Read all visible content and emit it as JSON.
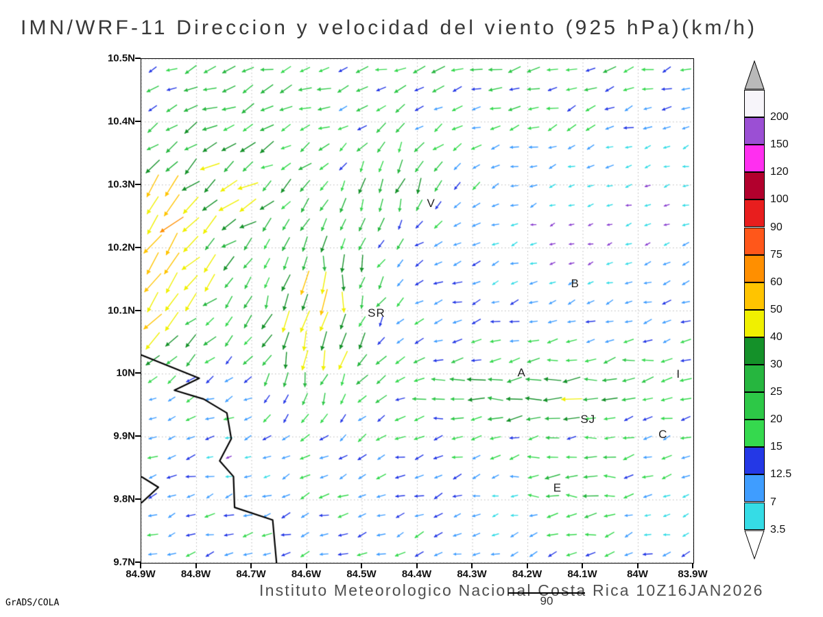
{
  "title": "IMN/WRF-11 Direccion y velocidad del viento (925 hPa)(km/h)",
  "footer": {
    "institute": "Instituto Meteorologico Nacional Costa Rica 10Z16JAN2026",
    "stray": "90",
    "credit": "GrADS/COLA"
  },
  "axes": {
    "lat": [
      {
        "label": "10.5N",
        "value": 10.5
      },
      {
        "label": "10.4N",
        "value": 10.4
      },
      {
        "label": "10.3N",
        "value": 10.3
      },
      {
        "label": "10.2N",
        "value": 10.2
      },
      {
        "label": "10.1N",
        "value": 10.1
      },
      {
        "label": "10N",
        "value": 10.0
      },
      {
        "label": "9.9N",
        "value": 9.9
      },
      {
        "label": "9.8N",
        "value": 9.8
      },
      {
        "label": "9.7N",
        "value": 9.7
      }
    ],
    "lon": [
      {
        "label": "84.9W",
        "value": -84.9
      },
      {
        "label": "84.8W",
        "value": -84.8
      },
      {
        "label": "84.7W",
        "value": -84.7
      },
      {
        "label": "84.6W",
        "value": -84.6
      },
      {
        "label": "84.5W",
        "value": -84.5
      },
      {
        "label": "84.4W",
        "value": -84.4
      },
      {
        "label": "84.3W",
        "value": -84.3
      },
      {
        "label": "84.2W",
        "value": -84.2
      },
      {
        "label": "84.1W",
        "value": -84.1
      },
      {
        "label": "84W",
        "value": -84.0
      },
      {
        "label": "83.9W",
        "value": -83.9
      }
    ]
  },
  "colorbar": {
    "labels": [
      "3.5",
      "7",
      "12.5",
      "15",
      "20",
      "25",
      "30",
      "40",
      "50",
      "60",
      "75",
      "90",
      "100",
      "120",
      "150",
      "200"
    ],
    "segment_colors": [
      "#35dce6",
      "#3f9dff",
      "#2438e6",
      "#35d94e",
      "#2dc847",
      "#26b63f",
      "#149129",
      "#f0f000",
      "#ffc400",
      "#ff8f00",
      "#ff571a",
      "#e81e1e",
      "#b2002d",
      "#ff2ff0",
      "#9b4fd4",
      "#f7f5fa"
    ],
    "over_color": "#b9b9b9",
    "under_color": "#ffffff"
  },
  "stations": [
    {
      "label": "V",
      "lon": -84.375,
      "lat": 10.27
    },
    {
      "label": "B",
      "lon": -84.114,
      "lat": 10.143
    },
    {
      "label": "SR",
      "lon": -84.474,
      "lat": 10.096
    },
    {
      "label": "A",
      "lon": -84.211,
      "lat": 10.001
    },
    {
      "label": "SJ",
      "lon": -84.091,
      "lat": 9.928
    },
    {
      "label": "C",
      "lon": -83.955,
      "lat": 9.903
    },
    {
      "label": "E",
      "lon": -84.146,
      "lat": 9.819
    },
    {
      "label": "I",
      "lon": -83.927,
      "lat": 9.999
    }
  ],
  "chart_data": {
    "type": "vector_field",
    "title": "IMN/WRF-11 Direccion y velocidad del viento (925 hPa)(km/h)",
    "units": "km/h",
    "level": "925 hPa",
    "x_range": [
      -84.9,
      -83.9
    ],
    "y_range": [
      9.7,
      10.5
    ],
    "grid": {
      "nx": 29,
      "ny": 26
    },
    "grid_step_deg": 0.1,
    "speed_levels": [
      3.5,
      7,
      12.5,
      15,
      20,
      25,
      30,
      40,
      50,
      60,
      75,
      90,
      100,
      120,
      150,
      200
    ],
    "speed_colors": [
      "#35dce6",
      "#3f9dff",
      "#2438e6",
      "#35d94e",
      "#2dc847",
      "#26b63f",
      "#149129",
      "#f0f000",
      "#ffc400",
      "#ff8f00",
      "#ff571a",
      "#e81e1e",
      "#b2002d",
      "#ff2ff0",
      "#9b4fd4",
      "#f7f5fa"
    ],
    "calm_color": "#8a3fd0",
    "flow_model": {
      "base": {
        "u": -12,
        "v": -4
      },
      "jets": [
        {
          "lon": -84.97,
          "lat": 10.17,
          "sx": 0.16,
          "sy": 0.14,
          "du": -42,
          "dv": -72
        },
        {
          "lon": -84.58,
          "lat": 10.1,
          "sx": 0.1,
          "sy": 0.14,
          "du": 6,
          "dv": -46
        },
        {
          "lon": -84.44,
          "lat": 10.3,
          "sx": 0.1,
          "sy": 0.08,
          "du": 4,
          "dv": -22
        },
        {
          "lon": -84.2,
          "lat": 9.97,
          "sx": 0.2,
          "sy": 0.055,
          "du": -24,
          "dv": 3
        },
        {
          "lon": -84.4,
          "lat": 10.55,
          "sx": 0.85,
          "sy": 0.13,
          "du": -10,
          "dv": -3
        },
        {
          "lon": -84.12,
          "lat": 9.82,
          "sx": 0.1,
          "sy": 0.05,
          "du": -15,
          "dv": 5
        },
        {
          "lon": -84.75,
          "lat": 10.32,
          "sx": 0.12,
          "sy": 0.1,
          "du": -18,
          "dv": -14
        }
      ],
      "calm_zones": [
        {
          "lon": -84.1,
          "lat": 10.22,
          "sx": 0.18,
          "sy": 0.11,
          "factor": 0.15
        },
        {
          "lon": -83.93,
          "lat": 10.32,
          "sx": 0.1,
          "sy": 0.1,
          "factor": 0.3
        },
        {
          "lon": -84.72,
          "lat": 9.86,
          "sx": 0.07,
          "sy": 0.05,
          "factor": 0.3
        },
        {
          "lon": -84.25,
          "lat": 9.8,
          "sx": 0.07,
          "sy": 0.05,
          "factor": 0.35
        },
        {
          "lon": -83.95,
          "lat": 9.77,
          "sx": 0.08,
          "sy": 0.05,
          "factor": 0.4
        },
        {
          "lon": -84.88,
          "lat": 9.95,
          "sx": 0.05,
          "sy": 0.05,
          "factor": 0.35
        }
      ],
      "jitter": {
        "speed": 0.35,
        "angle_deg": 18
      }
    },
    "coastline": [
      [
        [
          -84.9,
          10.03
        ],
        [
          -84.795,
          9.993
        ],
        [
          -84.84,
          9.974
        ],
        [
          -84.787,
          9.96
        ],
        [
          -84.745,
          9.938
        ],
        [
          -84.737,
          9.897
        ],
        [
          -84.758,
          9.862
        ],
        [
          -84.733,
          9.837
        ],
        [
          -84.731,
          9.788
        ],
        [
          -84.662,
          9.768
        ],
        [
          -84.655,
          9.7
        ]
      ],
      [
        [
          -84.9,
          9.837
        ],
        [
          -84.869,
          9.82
        ],
        [
          -84.9,
          9.795
        ]
      ]
    ]
  }
}
